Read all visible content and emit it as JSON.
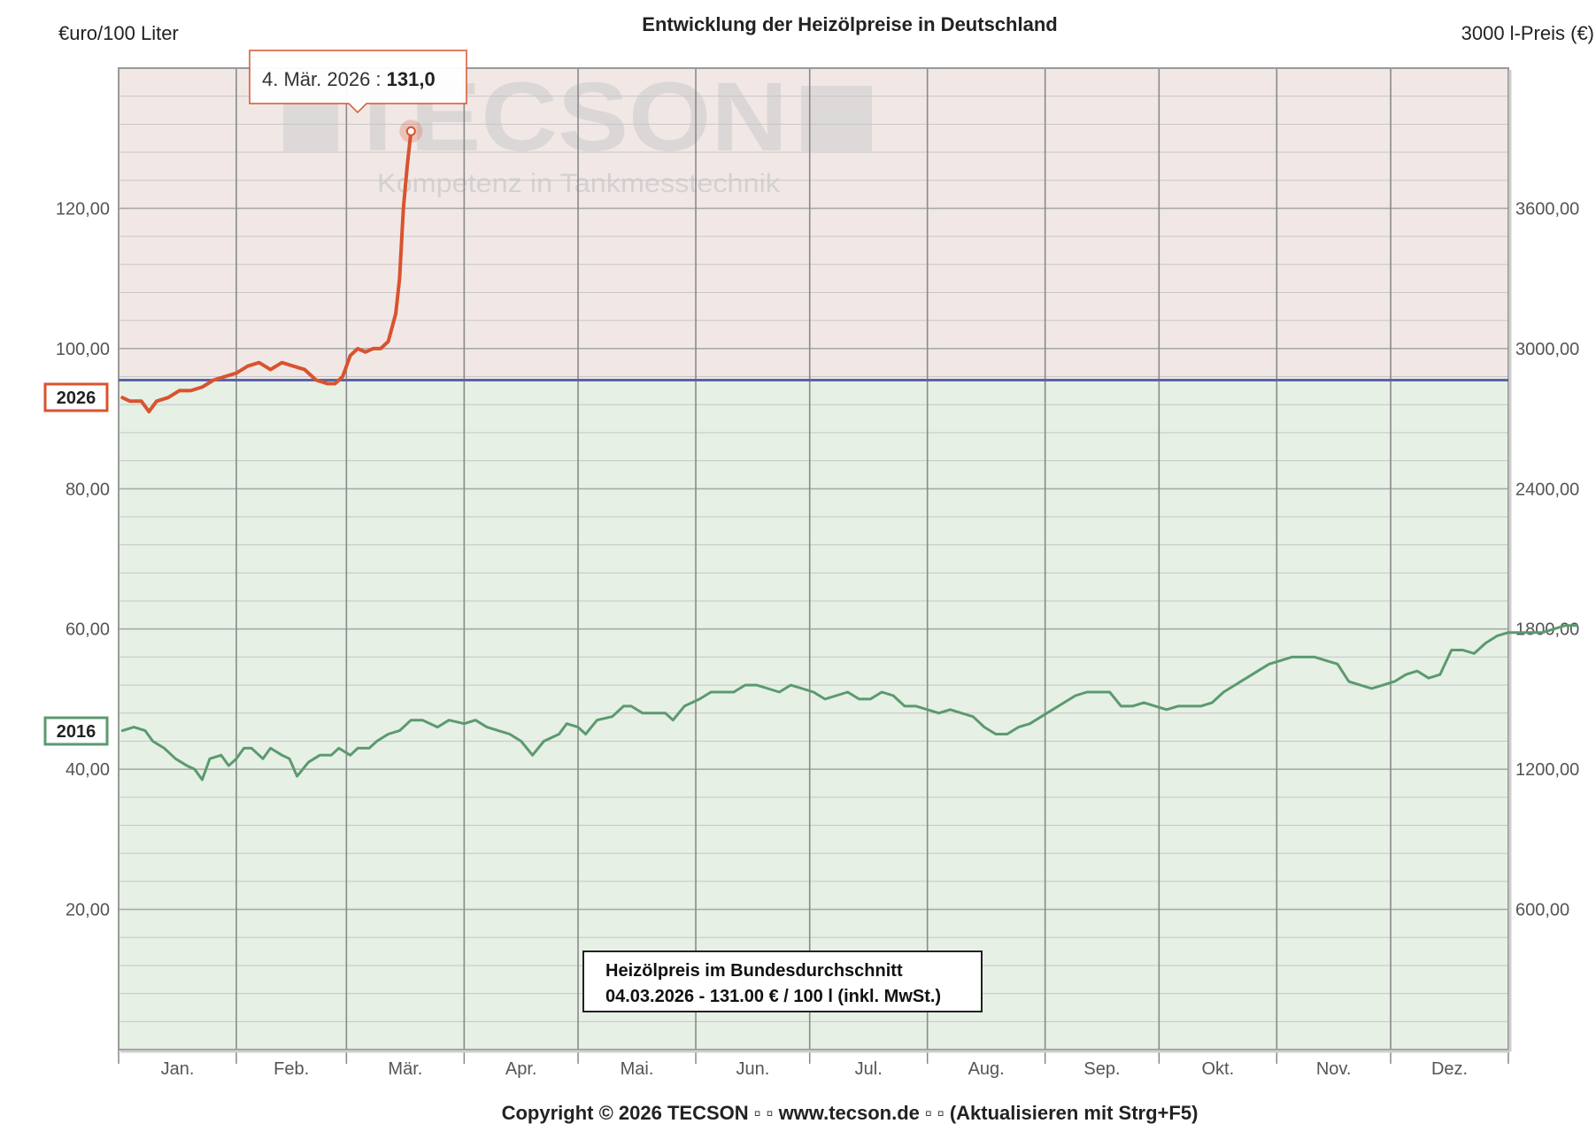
{
  "chart_data": {
    "type": "line",
    "title": "Entwicklung der Heizölpreise in Deutschland",
    "ylabel_left": "€uro/100 Liter",
    "ylabel_right": "3000 l-Preis (€)",
    "left_ticks": [
      "20,00",
      "40,00",
      "60,00",
      "80,00",
      "100,00",
      "120,00"
    ],
    "right_ticks": [
      "600,00",
      "1200,00",
      "1800,00",
      "2400,00",
      "3000,00",
      "3600,00"
    ],
    "ylim": [
      0,
      140
    ],
    "months": [
      "Jan.",
      "Feb.",
      "Mär.",
      "Apr.",
      "Mai.",
      "Jun.",
      "Jul.",
      "Aug.",
      "Sep.",
      "Okt.",
      "Nov.",
      "Dez."
    ],
    "reference_line": 95.5,
    "series": [
      {
        "name": "2026",
        "color": "#d9532e",
        "points": [
          [
            1,
            93
          ],
          [
            3,
            92.5
          ],
          [
            6,
            92.5
          ],
          [
            8,
            91
          ],
          [
            10,
            92.5
          ],
          [
            13,
            93
          ],
          [
            16,
            94
          ],
          [
            19,
            94
          ],
          [
            22,
            94.5
          ],
          [
            25,
            95.5
          ],
          [
            28,
            96
          ],
          [
            31,
            96.5
          ],
          [
            34,
            97.5
          ],
          [
            37,
            98
          ],
          [
            40,
            97
          ],
          [
            43,
            98
          ],
          [
            46,
            97.5
          ],
          [
            49,
            97
          ],
          [
            52,
            95.5
          ],
          [
            55,
            95
          ],
          [
            57,
            95
          ],
          [
            59,
            96
          ],
          [
            61,
            99
          ],
          [
            63,
            100
          ],
          [
            65,
            99.5
          ],
          [
            67,
            100
          ],
          [
            69,
            100
          ],
          [
            71,
            101
          ],
          [
            73,
            105
          ],
          [
            74,
            110
          ],
          [
            75,
            120
          ],
          [
            76,
            126
          ],
          [
            77,
            131
          ]
        ]
      },
      {
        "name": "2016",
        "color": "#5b9a6e",
        "points": [
          [
            1,
            45.5
          ],
          [
            4,
            46
          ],
          [
            7,
            45.5
          ],
          [
            9,
            44
          ],
          [
            12,
            43
          ],
          [
            15,
            41.5
          ],
          [
            18,
            40.5
          ],
          [
            20,
            40
          ],
          [
            22,
            38.5
          ],
          [
            24,
            41.5
          ],
          [
            27,
            42
          ],
          [
            29,
            40.5
          ],
          [
            31,
            41.5
          ],
          [
            33,
            43
          ],
          [
            35,
            43
          ],
          [
            38,
            41.5
          ],
          [
            40,
            43
          ],
          [
            43,
            42
          ],
          [
            45,
            41.5
          ],
          [
            47,
            39
          ],
          [
            50,
            41
          ],
          [
            53,
            42
          ],
          [
            56,
            42
          ],
          [
            58,
            43
          ],
          [
            61,
            42
          ],
          [
            63,
            43
          ],
          [
            66,
            43
          ],
          [
            68,
            44
          ],
          [
            71,
            45
          ],
          [
            74,
            45.5
          ],
          [
            77,
            47
          ],
          [
            80,
            47
          ],
          [
            84,
            46
          ],
          [
            87,
            47
          ],
          [
            91,
            46.5
          ],
          [
            94,
            47
          ],
          [
            97,
            46
          ],
          [
            100,
            45.5
          ],
          [
            103,
            45
          ],
          [
            106,
            44
          ],
          [
            109,
            42
          ],
          [
            112,
            44
          ],
          [
            116,
            45
          ],
          [
            118,
            46.5
          ],
          [
            121,
            46
          ],
          [
            123,
            45
          ],
          [
            126,
            47
          ],
          [
            130,
            47.5
          ],
          [
            133,
            49
          ],
          [
            135,
            49
          ],
          [
            138,
            48
          ],
          [
            141,
            48
          ],
          [
            144,
            48
          ],
          [
            146,
            47
          ],
          [
            149,
            49
          ],
          [
            153,
            50
          ],
          [
            156,
            51
          ],
          [
            159,
            51
          ],
          [
            162,
            51
          ],
          [
            165,
            52
          ],
          [
            168,
            52
          ],
          [
            171,
            51.5
          ],
          [
            174,
            51
          ],
          [
            177,
            52
          ],
          [
            180,
            51.5
          ],
          [
            183,
            51
          ],
          [
            186,
            50
          ],
          [
            189,
            50.5
          ],
          [
            192,
            51
          ],
          [
            195,
            50
          ],
          [
            198,
            50
          ],
          [
            201,
            51
          ],
          [
            204,
            50.5
          ],
          [
            207,
            49
          ],
          [
            210,
            49
          ],
          [
            213,
            48.5
          ],
          [
            216,
            48
          ],
          [
            219,
            48.5
          ],
          [
            222,
            48
          ],
          [
            225,
            47.5
          ],
          [
            228,
            46
          ],
          [
            231,
            45
          ],
          [
            234,
            45
          ],
          [
            237,
            46
          ],
          [
            240,
            46.5
          ],
          [
            243,
            47.5
          ],
          [
            246,
            48.5
          ],
          [
            249,
            49.5
          ],
          [
            252,
            50.5
          ],
          [
            255,
            51
          ],
          [
            258,
            51
          ],
          [
            261,
            51
          ],
          [
            264,
            49
          ],
          [
            267,
            49
          ],
          [
            270,
            49.5
          ],
          [
            273,
            49
          ],
          [
            276,
            48.5
          ],
          [
            279,
            49
          ],
          [
            282,
            49
          ],
          [
            285,
            49
          ],
          [
            288,
            49.5
          ],
          [
            291,
            51
          ],
          [
            294,
            52
          ],
          [
            297,
            53
          ],
          [
            300,
            54
          ],
          [
            303,
            55
          ],
          [
            306,
            55.5
          ],
          [
            309,
            56
          ],
          [
            312,
            56
          ],
          [
            315,
            56
          ],
          [
            318,
            55.5
          ],
          [
            321,
            55
          ],
          [
            324,
            52.5
          ],
          [
            327,
            52
          ],
          [
            330,
            51.5
          ],
          [
            333,
            52
          ],
          [
            336,
            52.5
          ],
          [
            339,
            53.5
          ],
          [
            342,
            54
          ],
          [
            345,
            53
          ],
          [
            348,
            53.5
          ],
          [
            351,
            57
          ],
          [
            354,
            57
          ],
          [
            357,
            56.5
          ],
          [
            360,
            58
          ],
          [
            363,
            59
          ],
          [
            366,
            59.5
          ],
          [
            369,
            59.5
          ],
          [
            372,
            59.5
          ],
          [
            375,
            59.5
          ],
          [
            378,
            60
          ],
          [
            381,
            60.5
          ],
          [
            384,
            60.5
          ]
        ]
      }
    ],
    "tooltip": {
      "date": "4. Mär. 2026 : ",
      "value": "131,0"
    },
    "annotation": {
      "line1": "Heizölpreis im Bundesdurchschnitt",
      "line2": "04.03.2026 - 131.00 € / 100 l (inkl. MwSt.)"
    },
    "watermark": {
      "brand": "TECSON",
      "tagline": "Kompetenz in Tankmesstechnik"
    }
  },
  "footer": "Copyright © 2026 TECSON ▫ ▫ www.tecson.de ▫ ▫ (Aktualisieren mit Strg+F5)",
  "colors": {
    "upper_band": "#f1e8e6",
    "lower_band": "#e6f0e5",
    "reference": "#5a64a8",
    "series_2026": "#d9532e",
    "series_2016": "#5b9a6e"
  }
}
